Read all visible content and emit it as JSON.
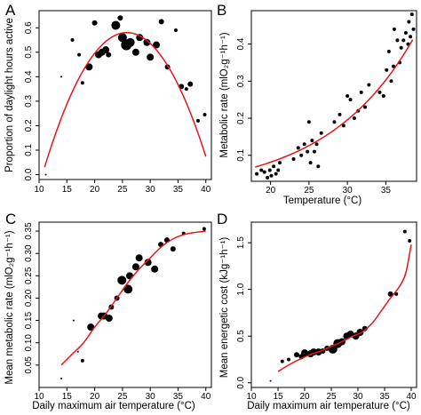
{
  "colors": {
    "fit": "#e8151b",
    "points": "#000000",
    "axis": "#000000"
  },
  "chart_data": [
    {
      "panel": "A",
      "type": "scatter",
      "xlabel": "",
      "ylabel": "Proportion of daylight hours active",
      "xlim": [
        10,
        41
      ],
      "ylim": [
        -0.02,
        0.67
      ],
      "xticks": [
        10,
        15,
        20,
        25,
        30,
        35,
        40
      ],
      "yticks": [
        0.0,
        0.1,
        0.2,
        0.3,
        0.4,
        0.5,
        0.6
      ],
      "fit_type": "quadratic",
      "fit_range": [
        11,
        40
      ],
      "fit_coef": [
        -1.09,
        0.1295,
        -0.00251
      ],
      "points": [
        {
          "x": 11.2,
          "y": 0.0,
          "r": 1
        },
        {
          "x": 14.0,
          "y": 0.4,
          "r": 1
        },
        {
          "x": 16.0,
          "y": 0.55,
          "r": 2
        },
        {
          "x": 17.2,
          "y": 0.49,
          "r": 2
        },
        {
          "x": 17.8,
          "y": 0.375,
          "r": 2
        },
        {
          "x": 19.0,
          "y": 0.44,
          "r": 4
        },
        {
          "x": 20.0,
          "y": 0.62,
          "r": 3
        },
        {
          "x": 20.7,
          "y": 0.49,
          "r": 4
        },
        {
          "x": 21.3,
          "y": 0.5,
          "r": 4
        },
        {
          "x": 22.0,
          "y": 0.51,
          "r": 4
        },
        {
          "x": 22.5,
          "y": 0.49,
          "r": 3
        },
        {
          "x": 23.8,
          "y": 0.61,
          "r": 5
        },
        {
          "x": 24.6,
          "y": 0.64,
          "r": 3
        },
        {
          "x": 25.0,
          "y": 0.56,
          "r": 5
        },
        {
          "x": 25.7,
          "y": 0.53,
          "r": 6
        },
        {
          "x": 26.4,
          "y": 0.54,
          "r": 5
        },
        {
          "x": 27.4,
          "y": 0.5,
          "r": 4
        },
        {
          "x": 28.1,
          "y": 0.56,
          "r": 4
        },
        {
          "x": 29.4,
          "y": 0.54,
          "r": 4
        },
        {
          "x": 30.0,
          "y": 0.48,
          "r": 4
        },
        {
          "x": 31.1,
          "y": 0.53,
          "r": 4
        },
        {
          "x": 32.0,
          "y": 0.625,
          "r": 3
        },
        {
          "x": 33.1,
          "y": 0.44,
          "r": 3
        },
        {
          "x": 34.6,
          "y": 0.59,
          "r": 2
        },
        {
          "x": 35.6,
          "y": 0.36,
          "r": 3
        },
        {
          "x": 36.5,
          "y": 0.35,
          "r": 2
        },
        {
          "x": 37.2,
          "y": 0.37,
          "r": 3
        },
        {
          "x": 38.6,
          "y": 0.22,
          "r": 2
        },
        {
          "x": 39.8,
          "y": 0.245,
          "r": 2
        }
      ]
    },
    {
      "panel": "B",
      "type": "scatter",
      "xlabel": "Temperature (°C)",
      "ylabel": "Metabolic rate (mlO₂g⁻¹h⁻¹)",
      "xlim": [
        17.5,
        39
      ],
      "ylim": [
        0.03,
        0.49
      ],
      "xticks": [
        20,
        25,
        30,
        35
      ],
      "yticks": [
        0.1,
        0.2,
        0.3,
        0.4
      ],
      "fit_type": "exponential",
      "fit_range": [
        18,
        38.5
      ],
      "fit_coef": [
        0.01413,
        0.0876
      ],
      "points": [
        {
          "x": 18.2,
          "y": 0.05,
          "r": 2
        },
        {
          "x": 18.8,
          "y": 0.06,
          "r": 2
        },
        {
          "x": 19.2,
          "y": 0.055,
          "r": 2
        },
        {
          "x": 19.6,
          "y": 0.04,
          "r": 2
        },
        {
          "x": 19.9,
          "y": 0.06,
          "r": 2
        },
        {
          "x": 20.1,
          "y": 0.045,
          "r": 2
        },
        {
          "x": 20.4,
          "y": 0.07,
          "r": 2
        },
        {
          "x": 20.7,
          "y": 0.05,
          "r": 2
        },
        {
          "x": 21.0,
          "y": 0.06,
          "r": 2
        },
        {
          "x": 21.2,
          "y": 0.08,
          "r": 2
        },
        {
          "x": 23.0,
          "y": 0.09,
          "r": 2
        },
        {
          "x": 23.6,
          "y": 0.12,
          "r": 2
        },
        {
          "x": 24.0,
          "y": 0.1,
          "r": 2
        },
        {
          "x": 24.4,
          "y": 0.13,
          "r": 2
        },
        {
          "x": 24.8,
          "y": 0.11,
          "r": 2
        },
        {
          "x": 25.0,
          "y": 0.19,
          "r": 2
        },
        {
          "x": 25.2,
          "y": 0.08,
          "r": 2
        },
        {
          "x": 25.4,
          "y": 0.14,
          "r": 2
        },
        {
          "x": 25.7,
          "y": 0.11,
          "r": 2
        },
        {
          "x": 26.0,
          "y": 0.13,
          "r": 2
        },
        {
          "x": 26.2,
          "y": 0.07,
          "r": 2
        },
        {
          "x": 26.6,
          "y": 0.16,
          "r": 2
        },
        {
          "x": 28.3,
          "y": 0.19,
          "r": 2
        },
        {
          "x": 29.0,
          "y": 0.21,
          "r": 2
        },
        {
          "x": 29.5,
          "y": 0.18,
          "r": 2
        },
        {
          "x": 30.0,
          "y": 0.26,
          "r": 2
        },
        {
          "x": 30.4,
          "y": 0.25,
          "r": 2
        },
        {
          "x": 30.9,
          "y": 0.2,
          "r": 2
        },
        {
          "x": 31.4,
          "y": 0.22,
          "r": 2
        },
        {
          "x": 31.8,
          "y": 0.27,
          "r": 2
        },
        {
          "x": 32.3,
          "y": 0.23,
          "r": 2
        },
        {
          "x": 32.8,
          "y": 0.29,
          "r": 2
        },
        {
          "x": 34.2,
          "y": 0.27,
          "r": 2
        },
        {
          "x": 34.7,
          "y": 0.26,
          "r": 2
        },
        {
          "x": 35.1,
          "y": 0.33,
          "r": 2
        },
        {
          "x": 35.4,
          "y": 0.38,
          "r": 2
        },
        {
          "x": 35.7,
          "y": 0.3,
          "r": 2
        },
        {
          "x": 36.0,
          "y": 0.34,
          "r": 2
        },
        {
          "x": 36.1,
          "y": 0.44,
          "r": 2
        },
        {
          "x": 36.5,
          "y": 0.41,
          "r": 2
        },
        {
          "x": 36.8,
          "y": 0.35,
          "r": 2
        },
        {
          "x": 37.0,
          "y": 0.39,
          "r": 2
        },
        {
          "x": 37.3,
          "y": 0.41,
          "r": 2
        },
        {
          "x": 37.6,
          "y": 0.43,
          "r": 2
        },
        {
          "x": 37.9,
          "y": 0.4,
          "r": 2
        },
        {
          "x": 38.0,
          "y": 0.46,
          "r": 2
        },
        {
          "x": 38.2,
          "y": 0.42,
          "r": 2
        },
        {
          "x": 38.4,
          "y": 0.48,
          "r": 2
        },
        {
          "x": 38.6,
          "y": 0.44,
          "r": 2
        }
      ]
    },
    {
      "panel": "C",
      "type": "scatter",
      "xlabel": "Daily maximum air temperature (°C)",
      "ylabel": "Mean metabolic rate (mlO₂g⁻¹h⁻¹)",
      "xlim": [
        10,
        41
      ],
      "ylim": [
        0.0,
        0.37
      ],
      "xticks": [
        10,
        15,
        20,
        25,
        30,
        35,
        40
      ],
      "yticks": [
        0.05,
        0.1,
        0.15,
        0.2,
        0.25,
        0.3,
        0.35
      ],
      "fit_type": "curve",
      "fit_points": [
        [
          14.0,
          0.05
        ],
        [
          16.0,
          0.075
        ],
        [
          18.0,
          0.1
        ],
        [
          20.0,
          0.135
        ],
        [
          22.0,
          0.165
        ],
        [
          24.0,
          0.2
        ],
        [
          26.0,
          0.235
        ],
        [
          28.0,
          0.265
        ],
        [
          30.0,
          0.29
        ],
        [
          32.0,
          0.315
        ],
        [
          34.0,
          0.332
        ],
        [
          36.0,
          0.342
        ],
        [
          38.0,
          0.347
        ],
        [
          40.0,
          0.35
        ]
      ],
      "points": [
        {
          "x": 14.0,
          "y": 0.02,
          "r": 1
        },
        {
          "x": 16.2,
          "y": 0.15,
          "r": 1
        },
        {
          "x": 17.0,
          "y": 0.08,
          "r": 1
        },
        {
          "x": 17.8,
          "y": 0.06,
          "r": 2
        },
        {
          "x": 19.3,
          "y": 0.135,
          "r": 4
        },
        {
          "x": 21.2,
          "y": 0.16,
          "r": 4
        },
        {
          "x": 21.7,
          "y": 0.16,
          "r": 4
        },
        {
          "x": 22.6,
          "y": 0.155,
          "r": 4
        },
        {
          "x": 23.0,
          "y": 0.18,
          "r": 3
        },
        {
          "x": 24.0,
          "y": 0.2,
          "r": 3
        },
        {
          "x": 24.9,
          "y": 0.24,
          "r": 5
        },
        {
          "x": 26.0,
          "y": 0.22,
          "r": 5
        },
        {
          "x": 26.3,
          "y": 0.25,
          "r": 4
        },
        {
          "x": 27.4,
          "y": 0.27,
          "r": 4
        },
        {
          "x": 28.0,
          "y": 0.29,
          "r": 4
        },
        {
          "x": 29.6,
          "y": 0.28,
          "r": 4
        },
        {
          "x": 30.8,
          "y": 0.265,
          "r": 4
        },
        {
          "x": 31.9,
          "y": 0.32,
          "r": 3
        },
        {
          "x": 33.0,
          "y": 0.33,
          "r": 3
        },
        {
          "x": 34.1,
          "y": 0.31,
          "r": 3
        },
        {
          "x": 36.0,
          "y": 0.345,
          "r": 2
        },
        {
          "x": 39.7,
          "y": 0.355,
          "r": 2
        }
      ]
    },
    {
      "panel": "D",
      "type": "scatter",
      "xlabel": "Daily maximum air temperature (°C)",
      "ylabel": "Mean energetic cost (kJg⁻¹h⁻¹)",
      "xlim": [
        10,
        41
      ],
      "ylim": [
        -0.05,
        1.72
      ],
      "xticks": [
        10,
        15,
        20,
        25,
        30,
        35,
        40
      ],
      "yticks": [
        0.0,
        0.5,
        1.0,
        1.5
      ],
      "fit_type": "curve",
      "fit_points": [
        [
          15.0,
          0.12
        ],
        [
          17.0,
          0.19
        ],
        [
          19.0,
          0.25
        ],
        [
          21.0,
          0.3
        ],
        [
          23.0,
          0.34
        ],
        [
          25.0,
          0.39
        ],
        [
          27.0,
          0.44
        ],
        [
          29.0,
          0.5
        ],
        [
          30.0,
          0.52
        ],
        [
          31.0,
          0.55
        ],
        [
          32.0,
          0.6
        ],
        [
          33.0,
          0.66
        ],
        [
          34.0,
          0.74
        ],
        [
          35.0,
          0.82
        ],
        [
          36.0,
          0.9
        ],
        [
          37.0,
          0.97
        ],
        [
          38.0,
          1.05
        ],
        [
          39.0,
          1.18
        ],
        [
          40.0,
          1.48
        ]
      ],
      "points": [
        {
          "x": 13.6,
          "y": 0.02,
          "r": 1
        },
        {
          "x": 15.8,
          "y": 0.23,
          "r": 2
        },
        {
          "x": 17.0,
          "y": 0.25,
          "r": 2
        },
        {
          "x": 18.5,
          "y": 0.3,
          "r": 3
        },
        {
          "x": 19.4,
          "y": 0.28,
          "r": 3
        },
        {
          "x": 20.0,
          "y": 0.32,
          "r": 4
        },
        {
          "x": 21.1,
          "y": 0.31,
          "r": 4
        },
        {
          "x": 21.7,
          "y": 0.33,
          "r": 4
        },
        {
          "x": 22.6,
          "y": 0.33,
          "r": 4
        },
        {
          "x": 23.4,
          "y": 0.34,
          "r": 3
        },
        {
          "x": 24.2,
          "y": 0.37,
          "r": 3
        },
        {
          "x": 25.3,
          "y": 0.36,
          "r": 5
        },
        {
          "x": 26.2,
          "y": 0.42,
          "r": 5
        },
        {
          "x": 27.0,
          "y": 0.44,
          "r": 4
        },
        {
          "x": 27.9,
          "y": 0.5,
          "r": 4
        },
        {
          "x": 28.6,
          "y": 0.52,
          "r": 4
        },
        {
          "x": 29.6,
          "y": 0.5,
          "r": 4
        },
        {
          "x": 30.4,
          "y": 0.54,
          "r": 4
        },
        {
          "x": 31.3,
          "y": 0.58,
          "r": 3
        },
        {
          "x": 36.1,
          "y": 0.95,
          "r": 3
        },
        {
          "x": 37.2,
          "y": 0.95,
          "r": 2
        },
        {
          "x": 38.8,
          "y": 1.62,
          "r": 2
        },
        {
          "x": 39.7,
          "y": 1.52,
          "r": 2
        }
      ]
    }
  ]
}
